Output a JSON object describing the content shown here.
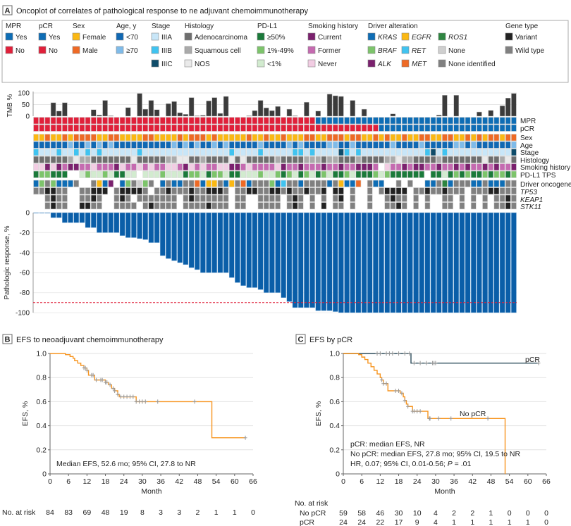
{
  "panel_a": {
    "letter": "A",
    "title": "Oncoplot of correlates of pathological response to ne adjuvant chemoimmunotherapy",
    "legend": [
      {
        "title": "MPR",
        "items": [
          {
            "label": "Yes",
            "color": "#0e6db5"
          },
          {
            "label": "No",
            "color": "#e0203a"
          }
        ]
      },
      {
        "title": "pCR",
        "items": [
          {
            "label": "Yes",
            "color": "#0e6db5"
          },
          {
            "label": "No",
            "color": "#e0203a"
          }
        ]
      },
      {
        "title": "Sex",
        "items": [
          {
            "label": "Female",
            "color": "#fbb813"
          },
          {
            "label": "Male",
            "color": "#ee6a25"
          }
        ]
      },
      {
        "title": "Age, y",
        "items": [
          {
            "label": "<70",
            "color": "#1068b3"
          },
          {
            "label": "≥70",
            "color": "#7fbbe9"
          }
        ]
      },
      {
        "title": "Stage",
        "items": [
          {
            "label": "IIIA",
            "color": "#c8e6f8"
          },
          {
            "label": "IIIB",
            "color": "#40c3f0"
          },
          {
            "label": "IIIC",
            "color": "#0f4c6a"
          }
        ]
      },
      {
        "title": "Histology",
        "items": [
          {
            "label": "Adenocarcinoma",
            "color": "#6e6e6e"
          },
          {
            "label": "Squamous cell",
            "color": "#aaaaaa"
          },
          {
            "label": "NOS",
            "color": "#eaeaea"
          }
        ]
      },
      {
        "title": "PD-L1",
        "items": [
          {
            "label": "≥50%",
            "color": "#1b7a3a"
          },
          {
            "label": "1%-49%",
            "color": "#7dc46b"
          },
          {
            "label": "<1%",
            "color": "#d2ebcf"
          }
        ]
      },
      {
        "title": "Smoking history",
        "items": [
          {
            "label": "Current",
            "color": "#7b216e"
          },
          {
            "label": "Former",
            "color": "#c56ab0"
          },
          {
            "label": "Never",
            "color": "#f2cde3"
          }
        ]
      },
      {
        "title": "Driver alteration",
        "items": [
          {
            "label": "KRAS",
            "color": "#0e6db5",
            "italic": true
          },
          {
            "label": "BRAF",
            "color": "#7dc46b",
            "italic": true
          },
          {
            "label": "ALK",
            "color": "#7b216e",
            "italic": true
          },
          {
            "label": "EGFR",
            "color": "#fbb813",
            "italic": true
          },
          {
            "label": "RET",
            "color": "#40c3f0",
            "italic": true
          },
          {
            "label": "MET",
            "color": "#ee6a25",
            "italic": true
          },
          {
            "label": "ROS1",
            "color": "#2e8540",
            "italic": true
          },
          {
            "label": "None",
            "color": "#cfcfcf"
          },
          {
            "label": "None identified",
            "color": "#808080"
          }
        ]
      },
      {
        "title": "Gene type",
        "items": [
          {
            "label": "Variant",
            "color": "#222222"
          },
          {
            "label": "Wild type",
            "color": "#808080"
          }
        ]
      }
    ],
    "tmb_axis_label": "TMB %",
    "tmb_ticks": [
      0,
      50,
      100
    ],
    "row_labels": {
      "mpr": "MPR",
      "pcr": "pCR",
      "sex": "Sex",
      "age": "Age",
      "stage": "Stage",
      "histology": "Histology",
      "smoking": "Smoking history",
      "pdl1": "PD-L1 TPS",
      "driver": "Driver oncogene",
      "tp53": "TP53",
      "keap1": "KEAP1",
      "stk11": "STK11"
    },
    "waterfall_axis_label": "Pathologic response, %",
    "waterfall_ticks": [
      0,
      -20,
      -40,
      -60,
      -80,
      -100
    ],
    "mpr_threshold": -90
  },
  "chart_data": [
    {
      "type": "bar",
      "name": "TMB and oncoplot",
      "ylabel": "TMB %",
      "ylim": [
        0,
        100
      ],
      "patients": 84,
      "tmb": [
        0,
        0,
        0,
        58,
        22,
        58,
        0,
        0,
        0,
        0,
        28,
        5,
        68,
        2,
        0,
        0,
        37,
        0,
        98,
        30,
        68,
        28,
        0,
        54,
        63,
        15,
        8,
        80,
        2,
        4,
        66,
        80,
        12,
        85,
        0,
        0,
        0,
        2,
        24,
        68,
        36,
        24,
        42,
        0,
        30,
        2,
        0,
        60,
        0,
        22,
        0,
        95,
        88,
        85,
        0,
        68,
        0,
        30,
        0,
        0,
        0,
        0,
        10,
        0,
        0,
        0,
        0,
        0,
        0,
        0,
        5,
        90,
        0,
        90,
        0,
        0,
        0,
        18,
        0,
        25,
        0,
        45,
        78,
        98
      ],
      "codes": {
        "mpr": "NNNNNNNNNNNN NNNNNNNNNNNN NNNNNNNNNNNN NNNNNNNNNNNN NYYYYYYYYYYY YYYYYYYYYYYY YYYYYYYYYYYY",
        "pcr": "NNNNNNNNNNNN NNNNNNNNNNNN NNNNNNNNNNNN NNNNNNNNNNNN NNNNNNNNNNNN YYYYYYYYYYYY YYYYYYYYYYYY",
        "sex": "FFMFFMFMMMMF FMMFFFFMMFFF FMFMMMFMFFFF FMFFMFFMFFFM MFFMMMFMMFFM FMFFMFFMMFFM MFFMFMFMMFMM",
        "age": "YYYYYYOYYOYO YOYYYYYYYYYY OYOYOYYOYOYY YYYOYYYYOYOY YYYOOYYOYYYY YYOYYYYOYYYY YOOYOYYYYYYO",
        "stage": "BAAABAABABAB AAAAAABAAAAA AAAAAAAAAABA AAABAAAAABBA BAAAACBABAAA AAAAAAAABCAB AAAAAAAAAAAC",
        "histology": "AAAAAASNSSAA AAAAANAAAAAS SNNAASAAAANA NAAAAASAAAAS SSASSAAASAAA ASSNSSAAAASA AAAAAANAASNA",
        "smoking": "NNCNCFCCFFNF FFCNFFNFNFFN NFCNFNFFNNCC FNFFFFNCFFCF FFCFFCFFCCCF .NFFCFCCFFCF FCFCFFCFCFFC",
        "pdl1": "HMMHHH..LMLL MLHHLL.LLLML LLHMMLHMMLHH LLLMLLMHMLHM LHMLHHMLHHHM LMHHHHHH.HHL HMHMHHMHMMHM",
        "driver": "KBIBKKKI..IE KA.KBINBI.KI KKIIMKEEIKEI MKIIIBKRIIKI IIIKIEKKM.IK K..I.I..KKIO KIIIKKIKKKII",
        "tp53": "WWVVWW..WWVV V.WVVVVW.WWV WWWVWWVVVW.W WVVWWVVWVWWV WWV.VV.W..W. WVVVV.WWVWWV WWW.WWWVVWWW",
        "keap1": "..WVWW..WWVW ..WVW.WWWWWW W.WVWWWWWW.W W..WWWW.WVW. W.W.WV.W..W. .WVWW.W.W..W W.W.W.W.WWVW",
        "stk11": "..WVWW..VVWW ..WWWW.WVWWW W.WWWWVWWW.W W..WWWW.WVW. W.V.WW.W..W. .WWVW.W.W..W W.W.W.W.WWVW"
      },
      "code_colors": {
        "mpr": {
          "Y": "#0e6db5",
          "N": "#e0203a"
        },
        "pcr": {
          "Y": "#0e6db5",
          "N": "#e0203a"
        },
        "sex": {
          "F": "#fbb813",
          "M": "#ee6a25"
        },
        "age": {
          "Y": "#1068b3",
          "O": "#7fbbe9"
        },
        "stage": {
          "A": "#c8e6f8",
          "B": "#40c3f0",
          "C": "#0f4c6a"
        },
        "histology": {
          "A": "#6e6e6e",
          "S": "#aaaaaa",
          "N": "#eaeaea"
        },
        "smoking": {
          "C": "#7b216e",
          "F": "#c56ab0",
          "N": "#f2cde3"
        },
        "pdl1": {
          "H": "#1b7a3a",
          "M": "#7dc46b",
          "L": "#d2ebcf"
        },
        "driver": {
          "K": "#0e6db5",
          "B": "#7dc46b",
          "A": "#7b216e",
          "E": "#fbb813",
          "R": "#40c3f0",
          "M": "#ee6a25",
          "O": "#2e8540",
          "N": "#cfcfcf",
          "I": "#808080"
        },
        "tp53": {
          "V": "#222222",
          "W": "#808080"
        },
        "keap1": {
          "V": "#222222",
          "W": "#808080"
        },
        "stk11": {
          "V": "#222222",
          "W": "#808080"
        }
      }
    },
    {
      "type": "bar",
      "name": "waterfall",
      "ylabel": "Pathologic response, %",
      "ylim": [
        -100,
        0
      ],
      "values": [
        0,
        0,
        0,
        -5,
        -5,
        -10,
        -10,
        -10,
        -10,
        -15,
        -15,
        -20,
        -20,
        -20,
        -20,
        -23,
        -25,
        -25,
        -26,
        -27,
        -30,
        -30,
        -43,
        -46,
        -48,
        -50,
        -52,
        -55,
        -57,
        -60,
        -60,
        -60,
        -60,
        -60,
        -65,
        -70,
        -73,
        -75,
        -75,
        -77,
        -80,
        -80,
        -80,
        -85,
        -89,
        -95,
        -95,
        -95,
        -95,
        -98,
        -98,
        -98,
        -99,
        -100,
        -100,
        -100,
        -100,
        -100,
        -100,
        -100,
        -100,
        -100,
        -100,
        -100,
        -100,
        -100,
        -100,
        -100,
        -100,
        -100,
        -100,
        -100,
        -100,
        -100,
        -100,
        -100,
        -100,
        -100,
        -100,
        -100,
        -100,
        -100,
        -100,
        -100
      ],
      "reference_line": -90,
      "bar_color": "#0a5ea8"
    },
    {
      "type": "line",
      "panel": "B",
      "title": "EFS to neoadjuvant chemoimmunotherapy",
      "xlabel": "Month",
      "ylabel": "EFS, %",
      "xlim": [
        0,
        66
      ],
      "ylim": [
        0,
        1.0
      ],
      "xticks": [
        0,
        6,
        12,
        18,
        24,
        30,
        36,
        42,
        48,
        54,
        60,
        66
      ],
      "yticks": [
        "0",
        "0.2",
        "0.4",
        "0.6",
        "0.8",
        "1.0"
      ],
      "annotation": "Median EFS, 52.6 mo; 95% CI, 27.8 to NR",
      "series": [
        {
          "color": "#f7941d",
          "steps": [
            [
              0,
              1.0
            ],
            [
              5,
              0.99
            ],
            [
              6.5,
              0.975
            ],
            [
              7.5,
              0.96
            ],
            [
              8,
              0.94
            ],
            [
              9,
              0.92
            ],
            [
              10,
              0.9
            ],
            [
              11,
              0.88
            ],
            [
              12,
              0.86
            ],
            [
              12.5,
              0.82
            ],
            [
              14.5,
              0.78
            ],
            [
              18,
              0.76
            ],
            [
              19,
              0.74
            ],
            [
              20,
              0.71
            ],
            [
              21,
              0.69
            ],
            [
              22,
              0.66
            ],
            [
              22.5,
              0.64
            ],
            [
              28,
              0.6
            ],
            [
              52.6,
              0.3
            ],
            [
              63.5,
              0.3
            ]
          ],
          "censored": [
            11,
            11.5,
            12,
            13.5,
            14,
            15,
            16.5,
            17,
            18,
            18.5,
            19.5,
            20.5,
            21,
            22,
            23,
            24,
            25,
            26,
            27,
            28,
            29,
            30,
            31,
            35,
            47,
            63.5
          ]
        }
      ],
      "at_risk_title": "No. at risk",
      "at_risk": [
        {
          "label": "",
          "values": [
            84,
            83,
            69,
            48,
            19,
            8,
            3,
            3,
            2,
            1,
            1,
            0
          ]
        }
      ]
    },
    {
      "type": "line",
      "panel": "C",
      "title": "EFS by pCR",
      "xlabel": "Month",
      "ylabel": "EFS, %",
      "xlim": [
        0,
        66
      ],
      "ylim": [
        0,
        1.0
      ],
      "xticks": [
        0,
        6,
        12,
        18,
        24,
        30,
        36,
        42,
        48,
        54,
        60,
        66
      ],
      "yticks": [
        "0",
        "0.2",
        "0.4",
        "0.6",
        "0.8",
        "1.0"
      ],
      "annotation_lines": [
        "pCR: median EFS, NR",
        "No pCR: median EFS, 27.8 mo; 95% CI, 19.5 to NR"
      ],
      "annotation_hr": {
        "pre": "HR, 0.07; 95% CI, 0.01-0.56; ",
        "p": "P",
        "post": " = .01"
      },
      "series": [
        {
          "name": "pCR",
          "color": "#2d4d5c",
          "steps": [
            [
              0,
              1.0
            ],
            [
              22,
              0.92
            ],
            [
              63.5,
              0.92
            ]
          ],
          "censored": [
            11,
            12,
            14,
            15,
            16,
            18,
            20,
            21.5,
            23,
            25,
            27,
            29,
            29.5,
            30,
            63.5
          ]
        },
        {
          "name": "No pCR",
          "color": "#f7941d",
          "steps": [
            [
              0,
              1.0
            ],
            [
              5,
              0.99
            ],
            [
              6,
              0.97
            ],
            [
              7,
              0.95
            ],
            [
              8,
              0.92
            ],
            [
              9,
              0.89
            ],
            [
              10,
              0.86
            ],
            [
              11,
              0.83
            ],
            [
              12,
              0.8
            ],
            [
              12.5,
              0.78
            ],
            [
              13,
              0.75
            ],
            [
              14.5,
              0.69
            ],
            [
              18.5,
              0.67
            ],
            [
              19.5,
              0.64
            ],
            [
              20,
              0.61
            ],
            [
              20.5,
              0.58
            ],
            [
              21,
              0.56
            ],
            [
              22.5,
              0.52
            ],
            [
              27.5,
              0.46
            ],
            [
              52.6,
              0.0
            ]
          ],
          "censored": [
            12.5,
            13,
            14,
            17,
            18,
            19,
            20,
            21,
            22.5,
            23,
            24,
            25,
            28,
            28.2,
            31,
            35,
            47
          ]
        }
      ],
      "at_risk_title": "No. at risk",
      "at_risk": [
        {
          "label": "No pCR",
          "values": [
            59,
            58,
            46,
            30,
            10,
            4,
            2,
            2,
            1,
            0,
            0,
            0
          ]
        },
        {
          "label": "pCR",
          "values": [
            24,
            24,
            22,
            17,
            9,
            4,
            1,
            1,
            1,
            1,
            1,
            0
          ]
        }
      ]
    }
  ]
}
